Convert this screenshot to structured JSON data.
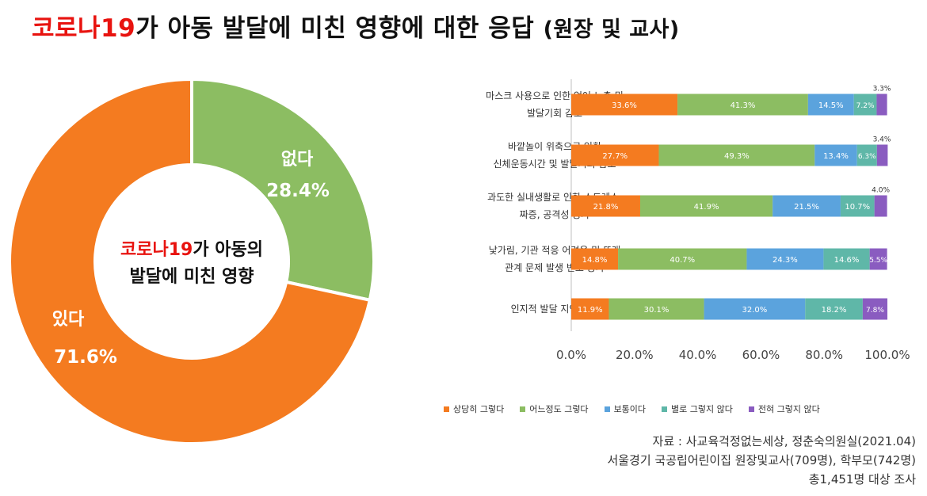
{
  "title": {
    "part_red": "코로나19",
    "part_main": "가 아동 발달에 미친 영향에 대한 응답",
    "part_sub": "(원장 및 교사)"
  },
  "donut": {
    "center_line1_red": "코로나19",
    "center_line1_rest": "가 아동의",
    "center_line2": "발달에 미친 영향",
    "slices": [
      {
        "label": "없다",
        "value": 28.4,
        "value_text": "28.4%",
        "color": "#8cbd62"
      },
      {
        "label": "있다",
        "value": 71.6,
        "value_text": "71.6%",
        "color": "#f47b20"
      }
    ]
  },
  "chart_data": {
    "type": "bar",
    "orientation": "horizontal-stacked-100",
    "categories": [
      [
        "마스크 사용으로 인한 언어 노출 및",
        "발달기회 감소"
      ],
      [
        "바깥놀이 위축으로 인한",
        "신체운동시간 및 발달기회 감소"
      ],
      [
        "과도한 실내생활로 인한 스트레스,",
        "짜증, 공격성 증가"
      ],
      [
        "낯가림, 기관 적응 어려움 및 또래",
        "관계 문제 발생 빈도 증가"
      ],
      [
        "인지적 발달 지연 경험"
      ]
    ],
    "series": [
      {
        "name": "상당히 그렇다",
        "color": "#f47b20",
        "values": [
          33.6,
          27.7,
          21.8,
          14.8,
          11.9
        ]
      },
      {
        "name": "어느정도 그렇다",
        "color": "#8cbd62",
        "values": [
          41.3,
          49.3,
          41.9,
          40.7,
          30.1
        ]
      },
      {
        "name": "보통이다",
        "color": "#5ba3dd",
        "values": [
          14.5,
          13.4,
          21.5,
          24.3,
          32.0
        ]
      },
      {
        "name": "별로 그렇지 않다",
        "color": "#5fb7a8",
        "values": [
          7.2,
          6.3,
          10.7,
          14.6,
          18.2
        ]
      },
      {
        "name": "전혀 그렇지 않다",
        "color": "#8a5cc0",
        "values": [
          3.3,
          3.4,
          4.0,
          5.5,
          7.8
        ]
      }
    ],
    "value_labels": [
      [
        "33.6%",
        "41.3%",
        "14.5%",
        "7.2%",
        "3.3%"
      ],
      [
        "27.7%",
        "49.3%",
        "13.4%",
        "6.3%",
        "3.4%"
      ],
      [
        "21.8%",
        "41.9%",
        "21.5%",
        "10.7%",
        "4.0%"
      ],
      [
        "14.8%",
        "40.7%",
        "24.3%",
        "14.6%",
        "5.5%"
      ],
      [
        "11.9%",
        "30.1%",
        "32.0%",
        "18.2%",
        "7.8%"
      ]
    ],
    "xticks": [
      "0.0%",
      "20.0%",
      "40.0%",
      "60.0%",
      "80.0%",
      "100.0%"
    ],
    "xlim": [
      0,
      100
    ],
    "grid": false,
    "legend_position": "bottom"
  },
  "source": {
    "line1": "자료 : 사교육걱정없는세상, 정춘숙의원실(2021.04)",
    "line2": "서울경기 국공립어린이집 원장및교사(709명), 학부모(742명)",
    "line3": "총1,451명 대상 조사"
  }
}
